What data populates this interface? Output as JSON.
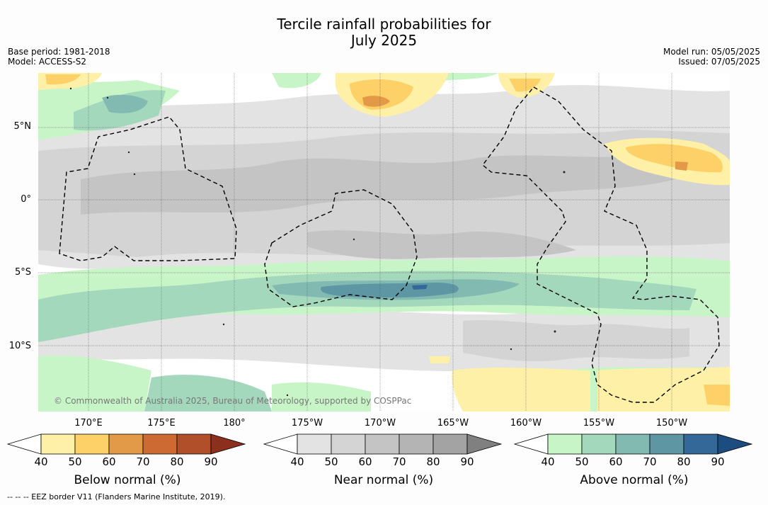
{
  "header": {
    "title_line1": "Tercile rainfall probabilities for",
    "title_line2": "July 2025",
    "base_period": "Base period: 1981-2018",
    "model": "Model: ACCESS-S2",
    "model_run": "Model run: 05/05/2025",
    "issued": "Issued: 07/05/2025"
  },
  "map": {
    "lat_labels": [
      "5°N",
      "0°",
      "5°S",
      "10°S"
    ],
    "lon_labels": [
      "170°E",
      "175°E",
      "180°",
      "175°W",
      "170°W",
      "165°W",
      "160°W",
      "155°W",
      "150°W"
    ],
    "copyright": "© Commonwealth of Australia 2025, Bureau of Meteorology, supported by COSPPac"
  },
  "legend": {
    "ticks": [
      "40",
      "50",
      "60",
      "70",
      "80",
      "90"
    ],
    "below_title": "Below normal (%)",
    "near_title": "Near normal (%)",
    "above_title": "Above normal (%)",
    "below_colors": [
      "#fff0a8",
      "#fdd068",
      "#e29a48",
      "#cd6a34",
      "#b04f2a",
      "#8c2f1c"
    ],
    "near_colors": [
      "#e3e3e3",
      "#d4d4d4",
      "#c4c4c4",
      "#b4b4b4",
      "#a3a3a3",
      "#808080"
    ],
    "above_colors": [
      "#c8f5c8",
      "#a4d8bc",
      "#82bab2",
      "#5e96a4",
      "#346898",
      "#1c4c80"
    ]
  },
  "footer": {
    "eez_note": "--  --  -- EEZ border V11 (Flanders Marine Institute, 2019)."
  }
}
